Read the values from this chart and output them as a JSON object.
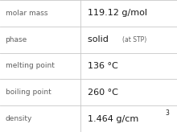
{
  "rows": [
    {
      "label": "molar mass",
      "value": "119.12 g/mol",
      "type": "normal"
    },
    {
      "label": "phase",
      "value": "solid",
      "type": "phase"
    },
    {
      "label": "melting point",
      "value": "136 °C",
      "type": "normal"
    },
    {
      "label": "boiling point",
      "value": "260 °C",
      "type": "normal"
    },
    {
      "label": "density",
      "value": "1.464 g/cm",
      "type": "density"
    }
  ],
  "phase_sub": "(at STP)",
  "bg_color": "#ffffff",
  "line_color": "#c8c8c8",
  "label_color": "#606060",
  "value_color": "#1a1a1a",
  "col_split": 0.455,
  "label_fontsize": 6.5,
  "value_fontsize": 8.0,
  "phase_main_fontsize": 8.0,
  "phase_sub_fontsize": 5.5,
  "density_super_fontsize": 5.5
}
